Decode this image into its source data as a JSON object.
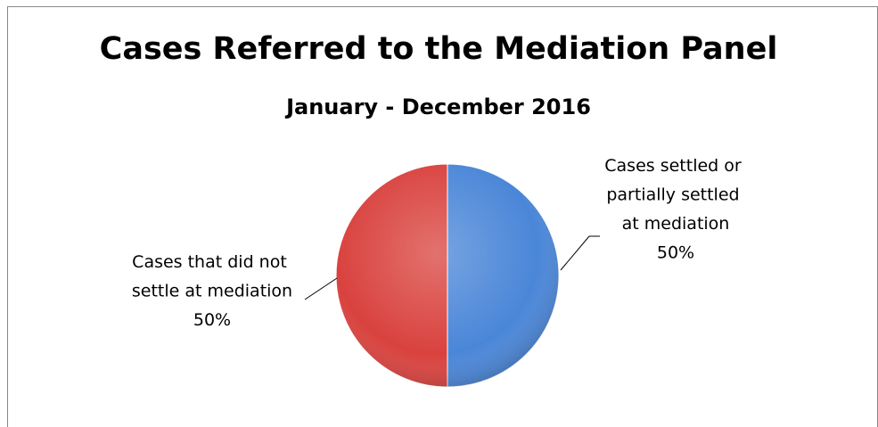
{
  "chart_data": {
    "type": "pie",
    "title": "Cases Referred to the Mediation Panel",
    "subtitle": "January - December 2016",
    "categories": [
      "Cases settled or partially settled at mediation",
      "Cases that did not settle at mediation"
    ],
    "values": [
      50,
      50
    ],
    "value_labels": [
      "50%",
      "50%"
    ],
    "colors": [
      "#4a86d8",
      "#d9423e"
    ]
  }
}
